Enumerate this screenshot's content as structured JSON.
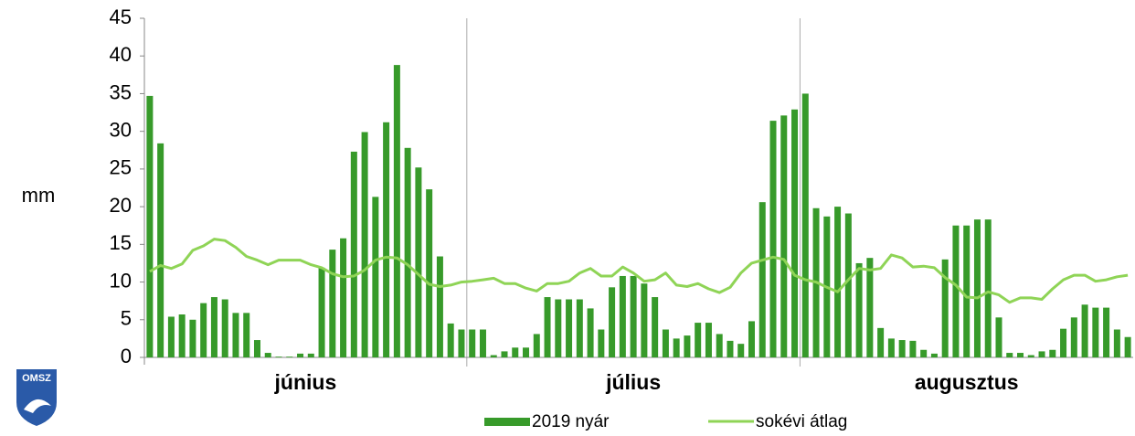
{
  "chart_data": {
    "type": "bar_line",
    "y_label": "mm",
    "logo": "OMSZ",
    "ylim": [
      0,
      45
    ],
    "yticks": [
      0,
      5,
      10,
      15,
      20,
      25,
      30,
      35,
      40,
      45
    ],
    "month_groups": [
      {
        "label": "június",
        "count": 30
      },
      {
        "label": "július",
        "count": 31
      },
      {
        "label": "augusztus",
        "count": 31
      }
    ],
    "series": [
      {
        "name": "2019 nyár",
        "type": "bar",
        "color": "#379a2a",
        "values": [
          34.7,
          28.4,
          5.4,
          5.7,
          5.0,
          7.2,
          8.0,
          7.7,
          5.9,
          5.9,
          2.3,
          0.6,
          0.1,
          0.1,
          0.5,
          0.5,
          11.9,
          14.3,
          15.8,
          27.3,
          29.9,
          21.3,
          31.2,
          38.8,
          27.8,
          25.2,
          22.3,
          13.4,
          4.5,
          3.7,
          3.7,
          3.7,
          0.3,
          0.8,
          1.3,
          1.3,
          3.1,
          8.0,
          7.7,
          7.7,
          7.7,
          6.5,
          3.7,
          9.3,
          10.8,
          10.8,
          9.8,
          8.0,
          3.7,
          2.5,
          2.9,
          4.6,
          4.6,
          3.1,
          2.2,
          1.8,
          4.8,
          20.6,
          31.4,
          32.1,
          32.9,
          35.0,
          19.8,
          18.7,
          20.0,
          19.1,
          12.5,
          13.2,
          3.9,
          2.5,
          2.3,
          2.2,
          1.0,
          0.5,
          13.0,
          17.5,
          17.5,
          18.3,
          18.3,
          5.3,
          0.6,
          0.6,
          0.3,
          0.8,
          1.0,
          3.8,
          5.3,
          7.0,
          6.6,
          6.6,
          3.7,
          2.7
        ]
      },
      {
        "name": "sokévi átlag",
        "type": "line",
        "color": "#8fd456",
        "values": [
          11.4,
          12.2,
          11.8,
          12.4,
          14.2,
          14.8,
          15.7,
          15.5,
          14.6,
          13.4,
          12.9,
          12.3,
          12.9,
          12.9,
          12.9,
          12.3,
          11.9,
          11.1,
          10.7,
          10.8,
          11.6,
          12.9,
          13.3,
          13.2,
          12.3,
          11.0,
          9.7,
          9.4,
          9.6,
          10.0,
          10.1,
          10.3,
          10.5,
          9.8,
          9.8,
          9.2,
          8.8,
          9.8,
          9.8,
          10.1,
          11.2,
          11.8,
          10.8,
          10.8,
          12.0,
          11.2,
          10.1,
          10.3,
          11.2,
          9.6,
          9.4,
          9.8,
          9.1,
          8.6,
          9.3,
          11.2,
          12.5,
          12.9,
          13.3,
          13.0,
          10.9,
          10.3,
          10.0,
          9.3,
          8.7,
          10.3,
          11.8,
          11.6,
          11.8,
          13.6,
          13.2,
          12.0,
          12.1,
          11.9,
          10.6,
          9.6,
          8.0,
          7.9,
          8.7,
          8.3,
          7.3,
          7.9,
          7.9,
          7.7,
          9.1,
          10.3,
          10.9,
          10.9,
          10.1,
          10.3,
          10.7,
          10.9
        ]
      }
    ]
  }
}
